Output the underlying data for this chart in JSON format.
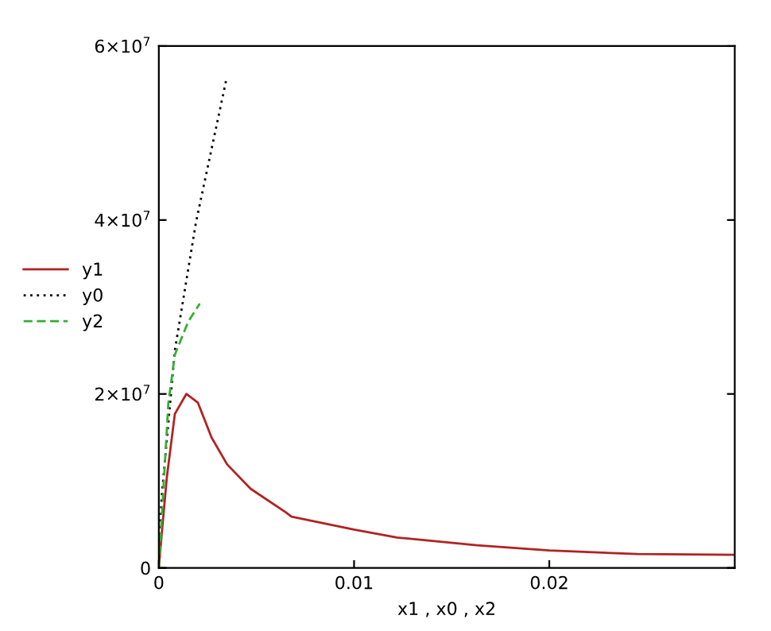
{
  "chart_data": {
    "type": "line",
    "xlabel": "x1 , x0 , x2",
    "series": [
      {
        "name": "y1",
        "color": "#b22222",
        "line_style": "solid",
        "x": [
          0,
          0.00014,
          0.00041,
          0.00082,
          0.00141,
          0.002,
          0.0027,
          0.0035,
          0.0047,
          0.0065,
          0.0068,
          0.01,
          0.0122,
          0.0163,
          0.02,
          0.0245,
          0.0295
        ],
        "values": [
          0,
          3700000.0,
          10400000.0,
          17700000.0,
          20000000.0,
          19000000.0,
          15000000.0,
          11900000.0,
          9100000.0,
          6400000.0,
          5900000.0,
          4400000.0,
          3500000.0,
          2600000.0,
          2000000.0,
          1600000.0,
          1500000.0
        ]
      },
      {
        "name": "y0",
        "color": "#000000",
        "line_style": "dotted",
        "x": [
          0,
          0.00014,
          0.00082,
          0.0019,
          0.00348
        ],
        "values": [
          0,
          8000000.0,
          25000000.0,
          39700000.0,
          56400000.0
        ]
      },
      {
        "name": "y2",
        "color": "#33b033",
        "line_style": "dashed",
        "x": [
          0,
          0.00049,
          0.00082,
          0.0015,
          0.0021
        ],
        "values": [
          0,
          19000000.0,
          24500000.0,
          28300000.0,
          30400000.0
        ]
      }
    ],
    "xlim": [
      0,
      0.0295
    ],
    "ylim": [
      0,
      60000000.0
    ],
    "xticks": [
      0,
      0.01,
      0.02
    ],
    "yticks": [
      0,
      {
        "value": 20000000.0,
        "label": "2×10$^{7}$"
      },
      {
        "value": 40000000.0,
        "label": "4×10$^{7}$"
      },
      {
        "value": 60000000.0,
        "label": "6×10$^{7}$"
      }
    ],
    "grid": false,
    "legend": "left"
  }
}
